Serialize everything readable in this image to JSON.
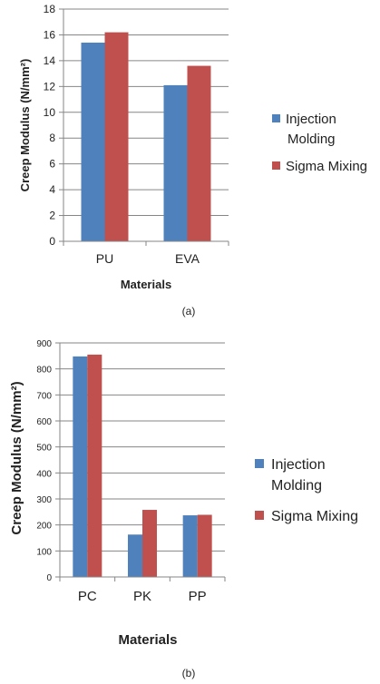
{
  "chart_data": [
    {
      "type": "bar",
      "caption": "(a)",
      "categories": [
        "PU",
        "EVA"
      ],
      "series": [
        {
          "name": "Injection Molding",
          "values": [
            15.4,
            12.1
          ],
          "color": "#4f81bd"
        },
        {
          "name": "Sigma Mixing",
          "values": [
            16.2,
            13.6
          ],
          "color": "#c0504d"
        }
      ],
      "ylim": [
        0,
        18
      ],
      "yticks": [
        "0",
        "2",
        "4",
        "6",
        "8",
        "10",
        "12",
        "14",
        "16",
        "18"
      ],
      "xlabel": "Materials",
      "ylabel": "Creep Modulus (N/mm²)",
      "grid": true,
      "legend": "right",
      "legend_labels": [
        [
          "Injection",
          "Molding"
        ],
        [
          "Sigma Mixing"
        ]
      ]
    },
    {
      "type": "bar",
      "caption": "(b)",
      "categories": [
        "PC",
        "PK",
        "PP"
      ],
      "series": [
        {
          "name": "Injection Molding",
          "values": [
            848,
            163,
            237
          ],
          "color": "#4f81bd"
        },
        {
          "name": "Sigma Mixing",
          "values": [
            855,
            258,
            239
          ],
          "color": "#c0504d"
        }
      ],
      "ylim": [
        0,
        900
      ],
      "yticks": [
        "0",
        "100",
        "200",
        "300",
        "400",
        "500",
        "600",
        "700",
        "800",
        "900"
      ],
      "xlabel": "Materials",
      "ylabel": "Creep Modulus (N/mm²)",
      "grid": true,
      "legend": "right",
      "legend_labels": [
        [
          "Injection",
          "Molding"
        ],
        [
          "Sigma Mixing"
        ]
      ]
    }
  ]
}
